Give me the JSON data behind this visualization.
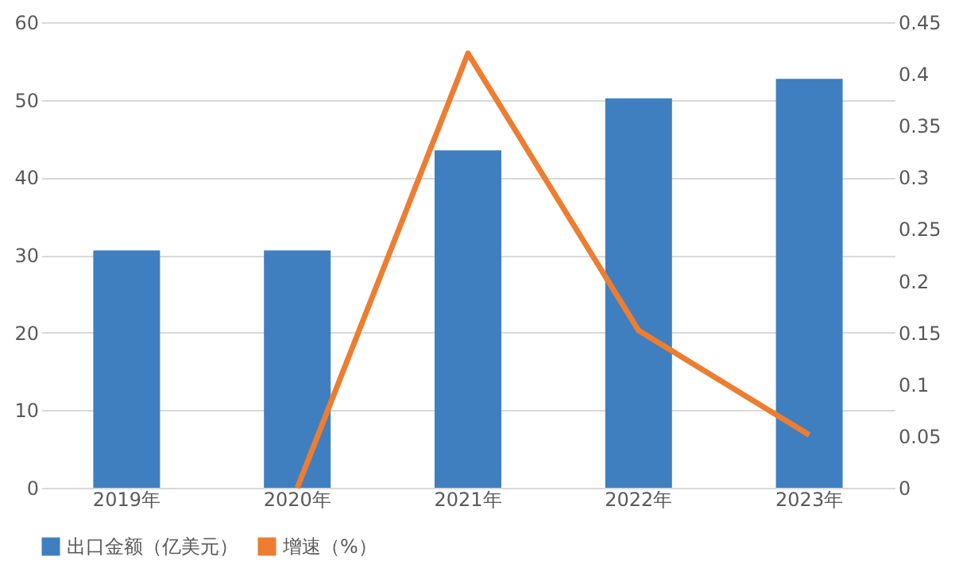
{
  "chart_data": {
    "type": "bar",
    "categories": [
      "2019年",
      "2020年",
      "2021年",
      "2022年",
      "2023年"
    ],
    "series": [
      {
        "name": "出口金额（亿美元）",
        "color": "#3f7fc0",
        "values": [
          30.6,
          30.6,
          43.5,
          50.2,
          52.7
        ]
      },
      {
        "name": "增速（%）",
        "type": "line",
        "axis": "y2",
        "color": "#ed7d31",
        "values": [
          null,
          0,
          0.42,
          0.152,
          0.051
        ]
      }
    ],
    "ylim": [
      0,
      60
    ],
    "yticks": [
      0,
      10,
      20,
      30,
      40,
      50,
      60
    ],
    "y2lim": [
      0,
      0.45
    ],
    "y2ticks": [
      0,
      0.05,
      0.1,
      0.15,
      0.2,
      0.25,
      0.3,
      0.35,
      0.4,
      0.45
    ],
    "grid": "y",
    "legend": "bottom"
  }
}
